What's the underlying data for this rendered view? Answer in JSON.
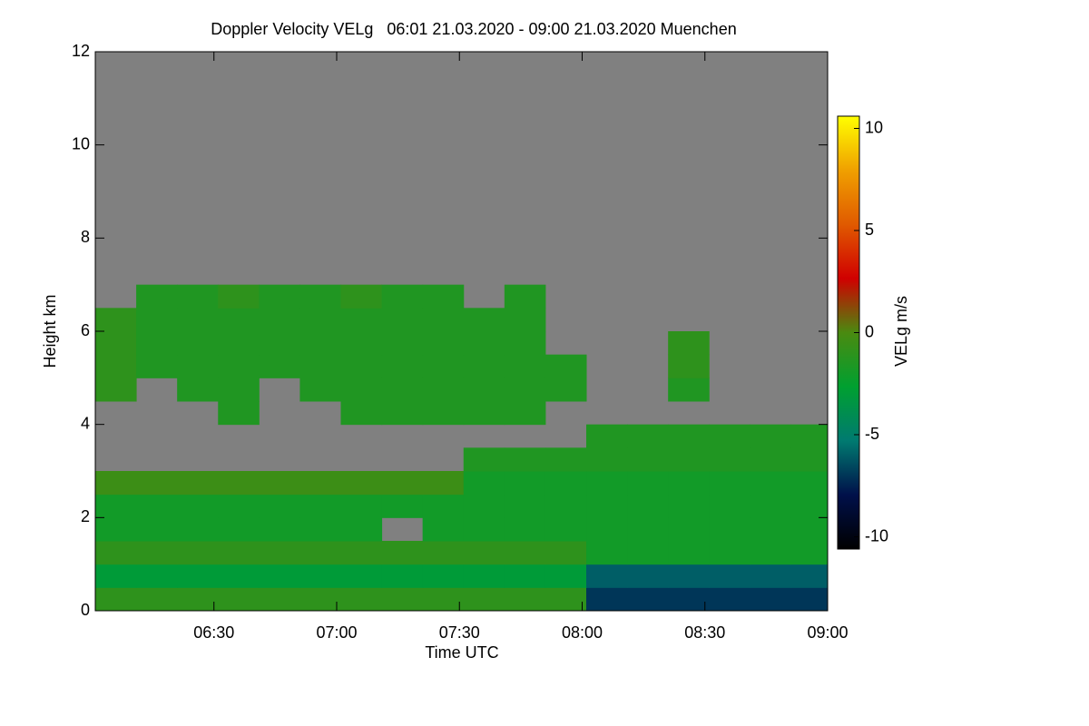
{
  "chart_data": {
    "type": "heatmap",
    "title": "Doppler Velocity VELg   06:01 21.03.2020 - 09:00 21.03.2020 Muenchen",
    "xlabel": "Time UTC",
    "ylabel": "Height km",
    "x": [
      "06:06",
      "06:16",
      "06:26",
      "06:36",
      "06:46",
      "06:56",
      "07:06",
      "07:16",
      "07:26",
      "07:36",
      "07:46",
      "07:56",
      "08:06",
      "08:16",
      "08:26",
      "08:36",
      "08:46",
      "08:56"
    ],
    "y": [
      0.25,
      0.75,
      1.25,
      1.75,
      2.25,
      2.75,
      3.25,
      3.75,
      4.25,
      4.75,
      5.25,
      5.75,
      6.25,
      6.75,
      7.25,
      7.75,
      8.25,
      8.75,
      9.25,
      9.75,
      10.25,
      10.75,
      11.25,
      11.75
    ],
    "values": [
      [
        -1,
        -1,
        -1,
        -1,
        -1,
        -1,
        -1,
        -1,
        -1,
        -1,
        -1,
        -1,
        -7,
        -7,
        -7,
        -7,
        -7,
        -7
      ],
      [
        -3,
        -3,
        -3,
        -3,
        -3,
        -3,
        -3,
        -3,
        -3,
        -3,
        -3,
        -3,
        -6,
        -6,
        -6,
        -6,
        -6,
        -6
      ],
      [
        -1,
        -1,
        -1,
        -1,
        -1,
        -1,
        -1,
        -1,
        -1,
        -1,
        -1,
        -1,
        -2,
        -2,
        -2,
        -2,
        -2,
        -2
      ],
      [
        -2,
        -2,
        -2,
        -2,
        -2,
        -2,
        -2,
        null,
        -2,
        -2,
        -2,
        -2,
        -2,
        -2,
        -2,
        -2,
        -2,
        -2
      ],
      [
        -2,
        -2,
        -2,
        -2,
        -2,
        -2,
        -2,
        -2,
        -2,
        -2,
        -2,
        -2,
        -2,
        -2,
        -2,
        -2,
        -2,
        -2
      ],
      [
        -0.5,
        -0.5,
        -0.5,
        -0.5,
        -0.5,
        -0.5,
        -0.5,
        -0.5,
        -0.5,
        -2,
        -2,
        -2,
        -2,
        -2,
        -2,
        -2,
        -2,
        -2
      ],
      [
        null,
        null,
        null,
        null,
        null,
        null,
        null,
        null,
        null,
        -1.5,
        -1.5,
        -1.5,
        -1.5,
        -1.5,
        -1.5,
        -1.5,
        -1.5,
        -1.5
      ],
      [
        null,
        null,
        null,
        null,
        null,
        null,
        null,
        null,
        null,
        null,
        null,
        null,
        -1.5,
        -1.5,
        -1.5,
        -1.5,
        -1.5,
        -1.5
      ],
      [
        null,
        null,
        null,
        -1.5,
        null,
        null,
        -1.5,
        -1.5,
        -1.5,
        -1.5,
        -1.5,
        null,
        null,
        null,
        null,
        null,
        null,
        null
      ],
      [
        -1,
        null,
        -1.5,
        -1.5,
        null,
        -1.5,
        -1.5,
        -1.5,
        -1.5,
        -1.5,
        -1.5,
        -1.5,
        null,
        null,
        -1.5,
        null,
        null,
        null
      ],
      [
        -1,
        -1.5,
        -1.5,
        -1.5,
        -1.5,
        -1.5,
        -1.5,
        -1.5,
        -1.5,
        -1.5,
        -1.5,
        -1.5,
        null,
        null,
        -1,
        null,
        null,
        null
      ],
      [
        -1,
        -1.5,
        -1.5,
        -1.5,
        -1.5,
        -1.5,
        -1.5,
        -1.5,
        -1.5,
        -1.5,
        -1.5,
        null,
        null,
        null,
        -1,
        null,
        null,
        null
      ],
      [
        -1,
        -1.5,
        -1.5,
        -1.5,
        -1.5,
        -1.5,
        -1.5,
        -1.5,
        -1.5,
        -1.5,
        -1.5,
        null,
        null,
        null,
        null,
        null,
        null,
        null
      ],
      [
        null,
        -1.5,
        -1.5,
        -1,
        -1.5,
        -1.5,
        -1,
        -1.5,
        -1.5,
        null,
        -1.5,
        null,
        null,
        null,
        null,
        null,
        null,
        null
      ],
      [
        null,
        null,
        null,
        null,
        null,
        null,
        null,
        null,
        null,
        null,
        null,
        null,
        null,
        null,
        null,
        null,
        null,
        null
      ],
      [
        null,
        null,
        null,
        null,
        null,
        null,
        null,
        null,
        null,
        null,
        null,
        null,
        null,
        null,
        null,
        null,
        null,
        null
      ],
      [
        null,
        null,
        null,
        null,
        null,
        null,
        null,
        null,
        null,
        null,
        null,
        null,
        null,
        null,
        null,
        null,
        null,
        null
      ],
      [
        null,
        null,
        null,
        null,
        null,
        null,
        null,
        null,
        null,
        null,
        null,
        null,
        null,
        null,
        null,
        null,
        null,
        null
      ],
      [
        null,
        null,
        null,
        null,
        null,
        null,
        null,
        null,
        null,
        null,
        null,
        null,
        null,
        null,
        null,
        null,
        null,
        null
      ],
      [
        null,
        null,
        null,
        null,
        null,
        null,
        null,
        null,
        null,
        null,
        null,
        null,
        null,
        null,
        null,
        null,
        null,
        null
      ],
      [
        null,
        null,
        null,
        null,
        null,
        null,
        null,
        null,
        null,
        null,
        null,
        null,
        null,
        null,
        null,
        null,
        null,
        null
      ],
      [
        null,
        null,
        null,
        null,
        null,
        null,
        null,
        null,
        null,
        null,
        null,
        null,
        null,
        null,
        null,
        null,
        null,
        null
      ],
      [
        null,
        null,
        null,
        null,
        null,
        null,
        null,
        null,
        null,
        null,
        null,
        null,
        null,
        null,
        null,
        null,
        null,
        null
      ],
      [
        null,
        null,
        null,
        null,
        null,
        null,
        null,
        null,
        null,
        null,
        null,
        null,
        null,
        null,
        null,
        null,
        null,
        null
      ]
    ],
    "xlim": [
      "06:01",
      "09:00"
    ],
    "xticks": [
      "06:30",
      "07:00",
      "07:30",
      "08:00",
      "08:30",
      "09:00"
    ],
    "ylim": [
      0,
      12
    ],
    "yticks": [
      0,
      2,
      4,
      6,
      8,
      10,
      12
    ],
    "nodata_color": "#808080",
    "colorbar": {
      "label": "VELg m/s",
      "lim": [
        -10.6,
        10.6
      ],
      "ticks": [
        -10,
        -5,
        0,
        5,
        10
      ],
      "colors": [
        "#000000",
        "#00104a",
        "#007a70",
        "#00a030",
        "#4a8a10",
        "#d00000",
        "#e05a00",
        "#f0a000",
        "#ffff00"
      ]
    }
  }
}
